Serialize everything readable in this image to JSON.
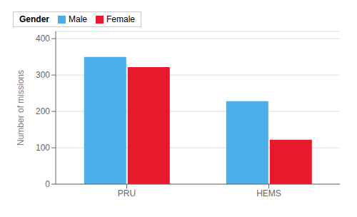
{
  "chart_data": {
    "type": "bar",
    "categories": [
      "PRU",
      "HEMS"
    ],
    "series": [
      {
        "name": "Male",
        "color": "#4baee8",
        "values": [
          350,
          228
        ]
      },
      {
        "name": "Female",
        "color": "#e8192c",
        "values": [
          322,
          122
        ]
      }
    ],
    "ylabel": "Number of missions",
    "legend_title": "Gender",
    "ylim": [
      0,
      420
    ],
    "yticks": [
      0,
      100,
      200,
      300,
      400
    ],
    "grid": true,
    "legend": "upper right"
  }
}
